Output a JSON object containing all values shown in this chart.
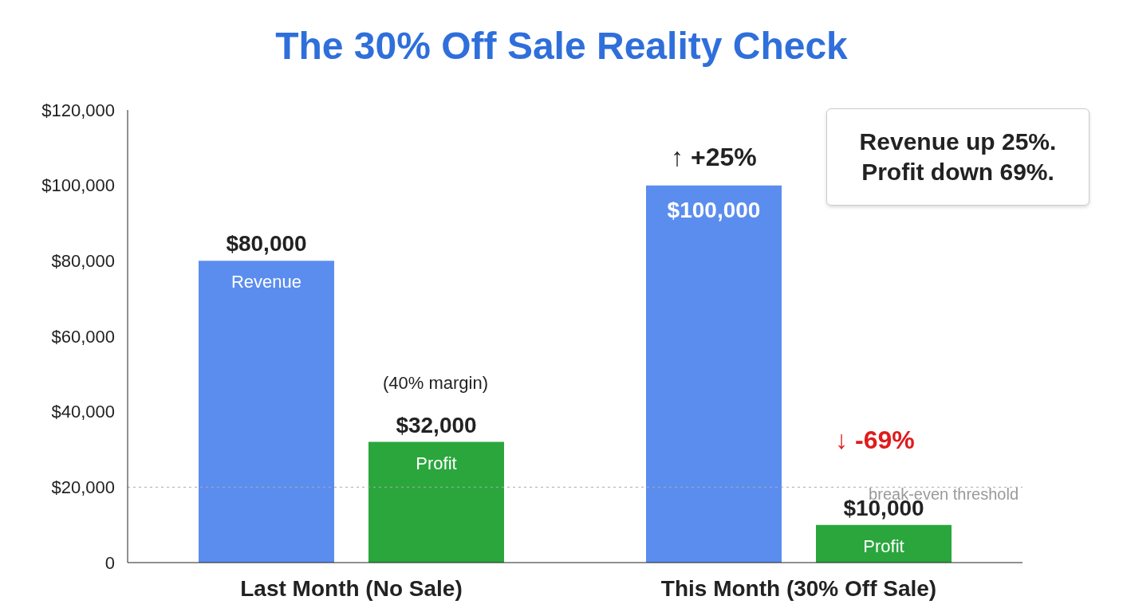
{
  "chart_data": {
    "type": "bar",
    "title": "The 30% Off Sale Reality Check",
    "categories": [
      "Last Month (No Sale)",
      "This Month (30% Off Sale)"
    ],
    "series": [
      {
        "name": "Revenue",
        "color": "#5b8def",
        "values": [
          80000,
          100000
        ],
        "value_labels": [
          "$80,000",
          "$100,000"
        ]
      },
      {
        "name": "Profit",
        "color": "#2aa63d",
        "values": [
          32000,
          10000
        ],
        "value_labels": [
          "$32,000",
          "$10,000"
        ]
      }
    ],
    "ylim": [
      0,
      120000
    ],
    "yticks": [
      {
        "value": 0,
        "label": "0"
      },
      {
        "value": 20000,
        "label": "$20,000"
      },
      {
        "value": 40000,
        "label": "$40,000"
      },
      {
        "value": 60000,
        "label": "$60,000"
      },
      {
        "value": 80000,
        "label": "$80,000"
      },
      {
        "value": 100000,
        "label": "$100,000"
      },
      {
        "value": 120000,
        "label": "$120,000"
      }
    ],
    "ref_lines": [
      {
        "axis": "y",
        "value": 20000,
        "label": "break-even threshold",
        "color": "#aaaaaa",
        "line_style": "dotted"
      }
    ],
    "annotations": [
      "Revenue up 25%.\nProfit down 69%.",
      "↑ +25%",
      "↓ -69%",
      "(40% margin)"
    ]
  }
}
